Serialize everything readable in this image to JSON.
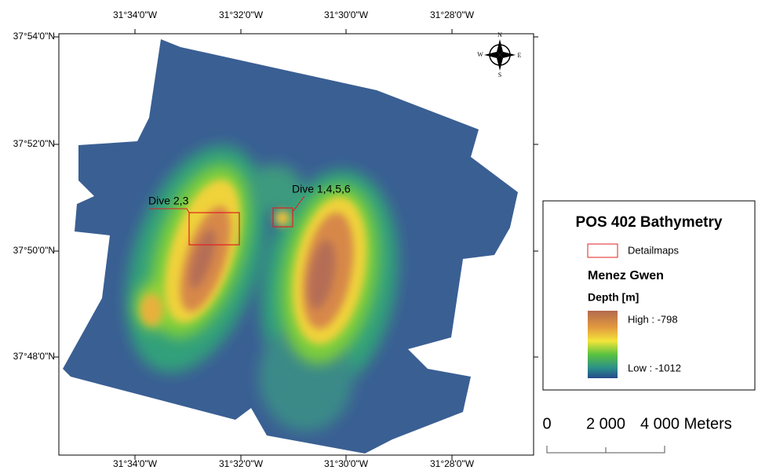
{
  "map": {
    "lon_labels": [
      "31°34'0\"W",
      "31°32'0\"W",
      "31°30'0\"W",
      "31°28'0\"W"
    ],
    "lat_labels": [
      "37°54'0\"N",
      "37°52'0\"N",
      "37°50'0\"N",
      "37°48'0\"N"
    ],
    "annotations": [
      "Dive 2,3",
      "Dive 1,4,5,6"
    ],
    "compass": {
      "n": "N",
      "e": "E",
      "s": "S",
      "w": "W"
    }
  },
  "legend": {
    "title": "POS 402 Bathymetry",
    "detail": "Detailmaps",
    "area": "Menez Gwen",
    "depth_title": "Depth [m]",
    "high": "High : -798",
    "low": "Low : -1012"
  },
  "scale_bar": {
    "labels": [
      "0",
      "2 000",
      "4 000 Meters"
    ]
  }
}
